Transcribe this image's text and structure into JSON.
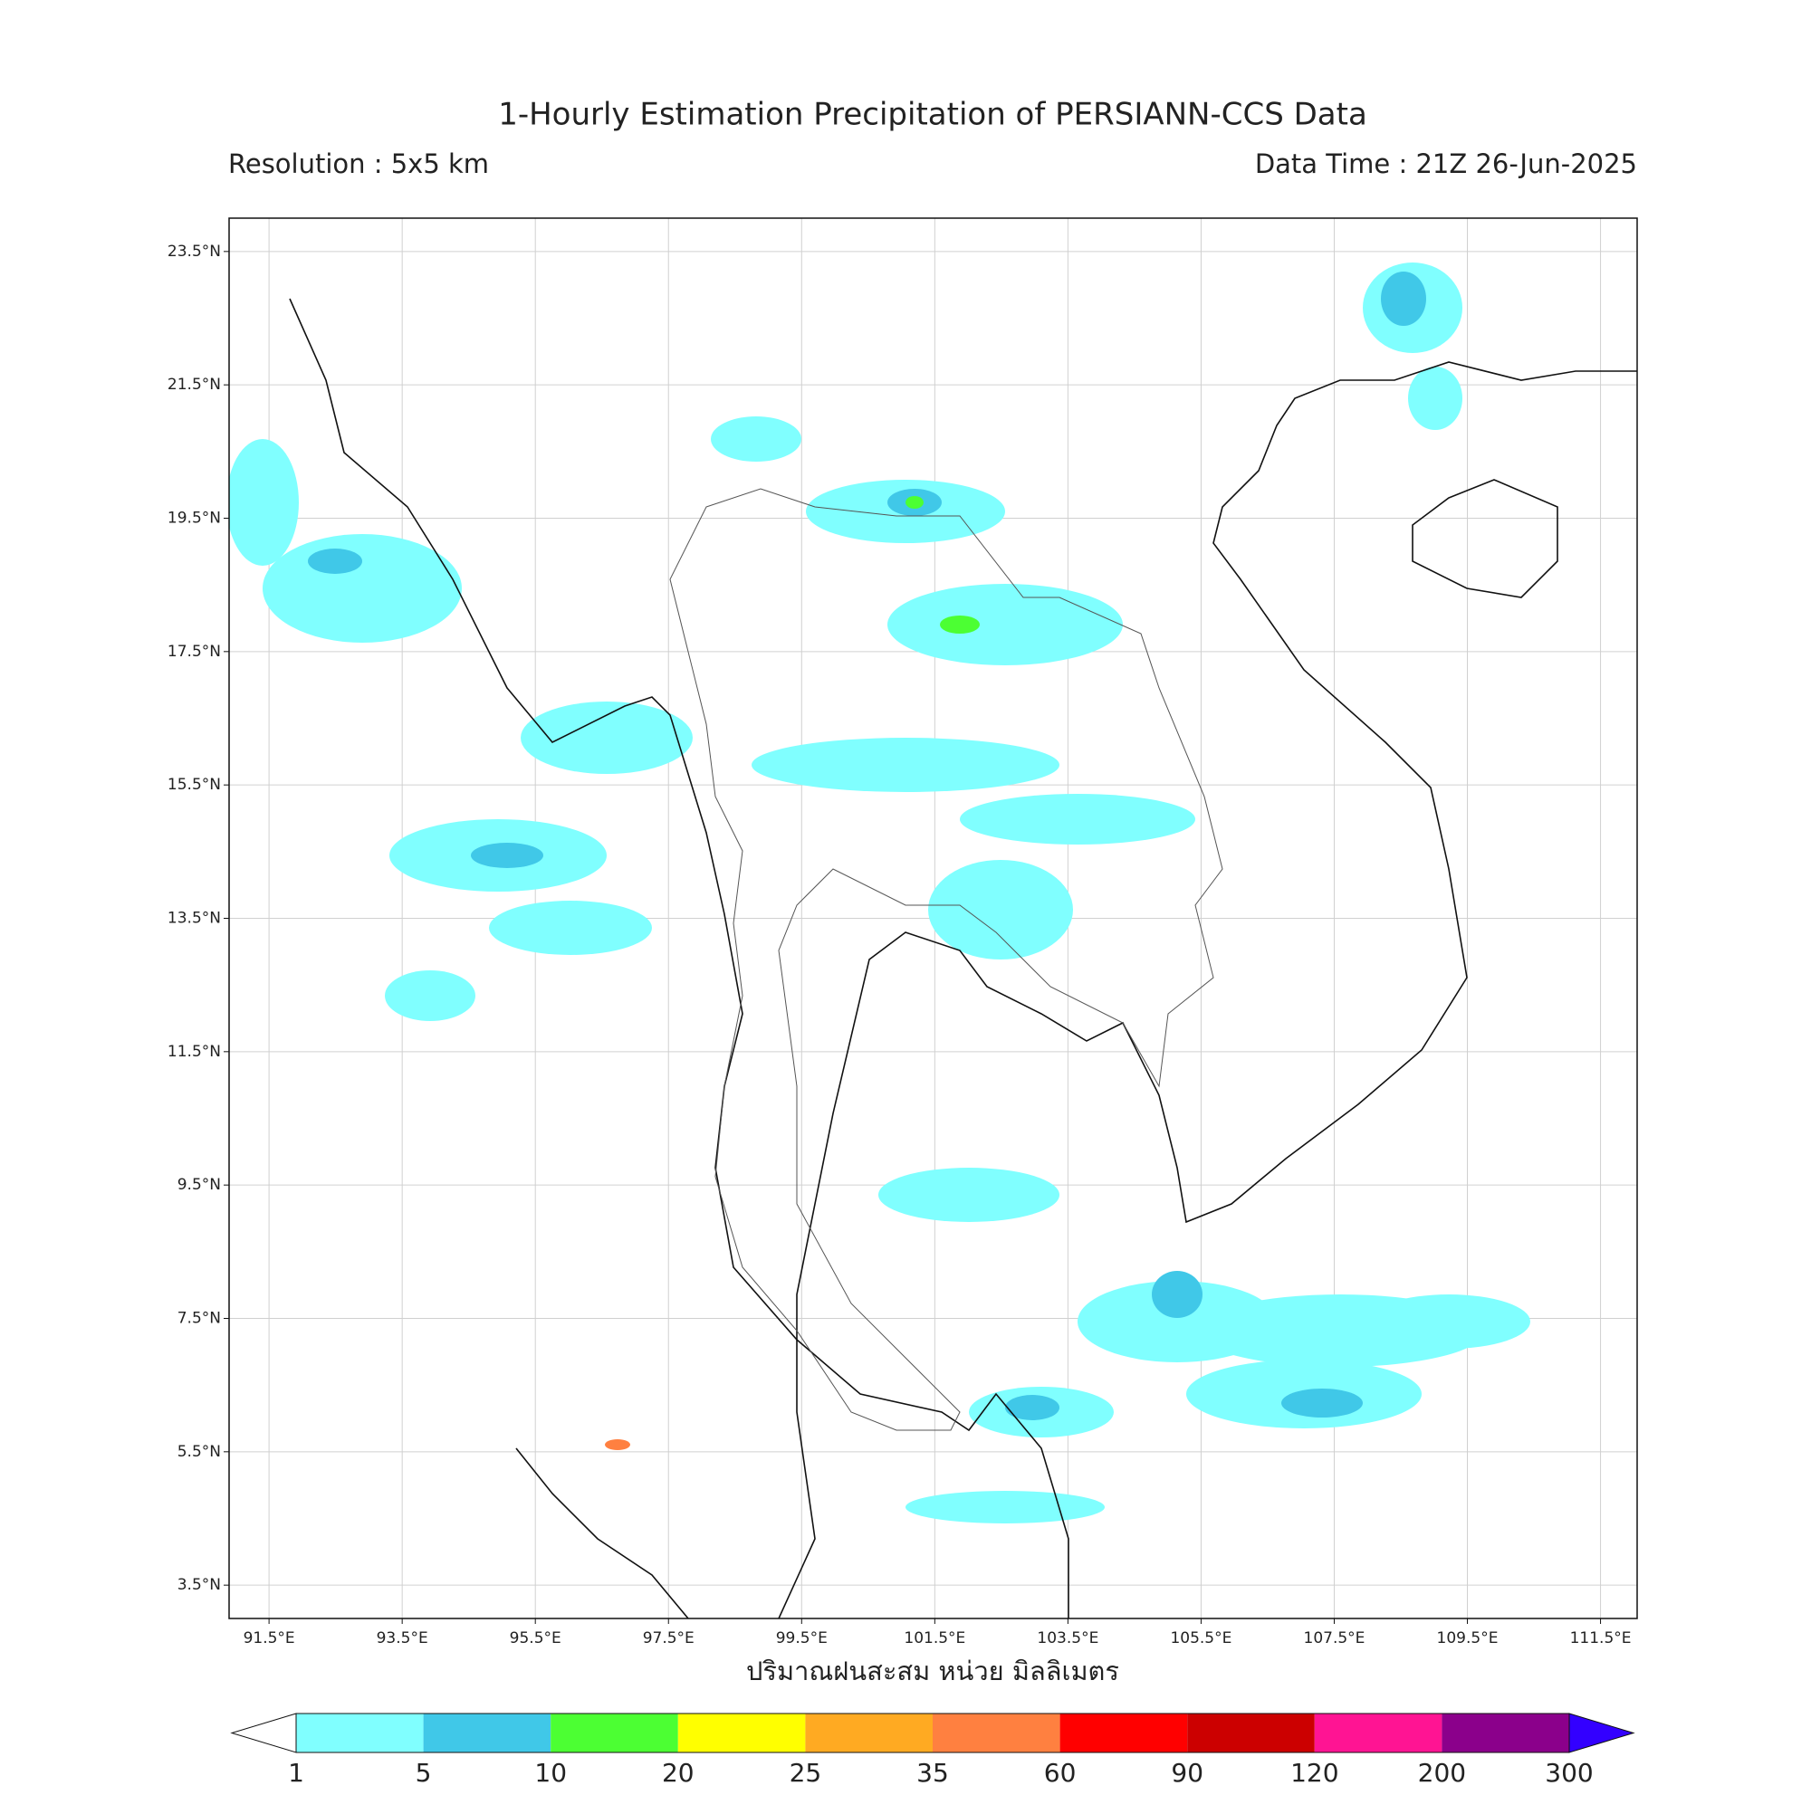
{
  "header": {
    "title": "1-Hourly Estimation Precipitation of PERSIANN-CCS Data",
    "resolution": "Resolution : 5x5 km",
    "data_time": "Data Time : 21Z 26-Jun-2025"
  },
  "map": {
    "xlim": [
      90.9,
      112.05
    ],
    "ylim": [
      3.0,
      24.0
    ],
    "xticks": [
      {
        "value": 91.5,
        "label": "91.5°E"
      },
      {
        "value": 93.5,
        "label": "93.5°E"
      },
      {
        "value": 95.5,
        "label": "95.5°E"
      },
      {
        "value": 97.5,
        "label": "97.5°E"
      },
      {
        "value": 99.5,
        "label": "99.5°E"
      },
      {
        "value": 101.5,
        "label": "101.5°E"
      },
      {
        "value": 103.5,
        "label": "103.5°E"
      },
      {
        "value": 105.5,
        "label": "105.5°E"
      },
      {
        "value": 107.5,
        "label": "107.5°E"
      },
      {
        "value": 109.5,
        "label": "109.5°E"
      },
      {
        "value": 111.5,
        "label": "111.5°E"
      }
    ],
    "yticks": [
      {
        "value": 23.5,
        "label": "23.5°N"
      },
      {
        "value": 21.5,
        "label": "21.5°N"
      },
      {
        "value": 19.5,
        "label": "19.5°N"
      },
      {
        "value": 17.5,
        "label": "17.5°N"
      },
      {
        "value": 15.5,
        "label": "15.5°N"
      },
      {
        "value": 13.5,
        "label": "13.5°N"
      },
      {
        "value": 11.5,
        "label": "11.5°N"
      },
      {
        "value": 9.5,
        "label": "9.5°N"
      },
      {
        "value": 7.5,
        "label": "7.5°N"
      },
      {
        "value": 5.5,
        "label": "5.5°N"
      },
      {
        "value": 3.5,
        "label": "3.5°N"
      }
    ],
    "grid": true
  },
  "colorbar": {
    "label": "ปริมาณฝนสะสม หน่วย มิลลิเมตร",
    "levels": [
      1,
      5,
      10,
      20,
      25,
      35,
      60,
      90,
      120,
      200,
      300
    ],
    "colors": [
      "#80ffff",
      "#40c8e8",
      "#4cff33",
      "#ffff00",
      "#ffaa22",
      "#ff8040",
      "#ff0000",
      "#cc0000",
      "#ff1493",
      "#8b008b"
    ],
    "under_color": "#ffffff",
    "over_color": "#3300ff"
  }
}
